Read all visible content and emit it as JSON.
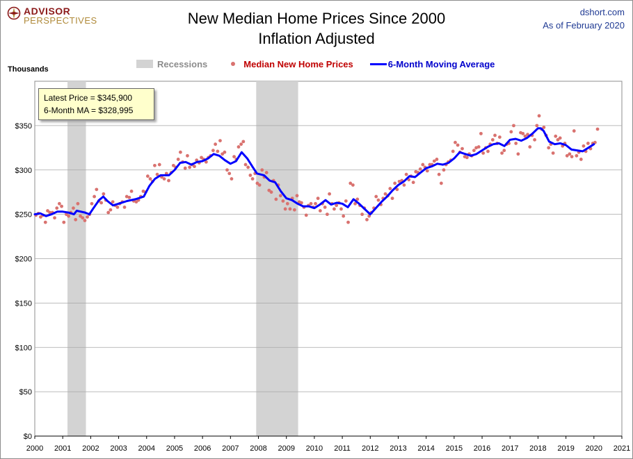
{
  "header": {
    "logo_line1": "ADVISOR",
    "logo_line2": "PERSPECTIVES",
    "title_line1": "New Median Home Prices Since 2000",
    "title_line2": "Inflation Adjusted",
    "source": "dshort.com",
    "date": "As of February 2020"
  },
  "legend": {
    "recessions": "Recessions",
    "median": "Median New Home Prices",
    "ma": "6-Month Moving Average"
  },
  "callout": {
    "latest": "Latest Price = $345,900",
    "ma": "6-Month MA = $328,995"
  },
  "colors": {
    "recession": "#d3d3d3",
    "points": "#d9726f",
    "ma_line": "#0000ff",
    "grid": "#a6a6a6"
  },
  "chart_data": {
    "type": "scatter",
    "title": "New Median Home Prices Since 2000 - Inflation Adjusted",
    "ylabel": "Thousands",
    "xlabel": "",
    "xlim": [
      2000,
      2021
    ],
    "ylim": [
      0,
      400
    ],
    "x_ticks": [
      "2000",
      "2001",
      "2002",
      "2003",
      "2004",
      "2005",
      "2006",
      "2007",
      "2008",
      "2009",
      "2010",
      "2011",
      "2012",
      "2013",
      "2014",
      "2015",
      "2016",
      "2017",
      "2018",
      "2019",
      "2020",
      "2021"
    ],
    "y_ticks": [
      "$0",
      "$50",
      "$100",
      "$150",
      "$200",
      "$250",
      "$300",
      "$350"
    ],
    "recessions": [
      [
        2001.17,
        2001.83
      ],
      [
        2007.92,
        2009.42
      ]
    ],
    "ma_anchors": [
      [
        2000.0,
        250
      ],
      [
        2000.2,
        251
      ],
      [
        2000.4,
        248
      ],
      [
        2000.6,
        250
      ],
      [
        2000.8,
        253
      ],
      [
        2001.0,
        253
      ],
      [
        2001.2,
        252
      ],
      [
        2001.4,
        250
      ],
      [
        2001.5,
        254
      ],
      [
        2001.8,
        252
      ],
      [
        2001.95,
        250
      ],
      [
        2002.1,
        257
      ],
      [
        2002.3,
        266
      ],
      [
        2002.45,
        270
      ],
      [
        2002.6,
        265
      ],
      [
        2002.8,
        260
      ],
      [
        2003.0,
        262
      ],
      [
        2003.3,
        265
      ],
      [
        2003.6,
        267
      ],
      [
        2003.9,
        270
      ],
      [
        2004.1,
        282
      ],
      [
        2004.3,
        290
      ],
      [
        2004.5,
        294
      ],
      [
        2004.8,
        294
      ],
      [
        2005.0,
        300
      ],
      [
        2005.2,
        308
      ],
      [
        2005.4,
        309
      ],
      [
        2005.6,
        306
      ],
      [
        2005.8,
        309
      ],
      [
        2006.0,
        310
      ],
      [
        2006.2,
        313
      ],
      [
        2006.4,
        318
      ],
      [
        2006.6,
        316
      ],
      [
        2006.8,
        311
      ],
      [
        2007.0,
        307
      ],
      [
        2007.2,
        310
      ],
      [
        2007.4,
        320
      ],
      [
        2007.6,
        313
      ],
      [
        2007.8,
        303
      ],
      [
        2007.95,
        296
      ],
      [
        2008.2,
        294
      ],
      [
        2008.4,
        288
      ],
      [
        2008.6,
        286
      ],
      [
        2008.8,
        276
      ],
      [
        2009.0,
        268
      ],
      [
        2009.2,
        266
      ],
      [
        2009.4,
        262
      ],
      [
        2009.6,
        259
      ],
      [
        2009.8,
        259
      ],
      [
        2010.0,
        257
      ],
      [
        2010.2,
        261
      ],
      [
        2010.4,
        266
      ],
      [
        2010.6,
        261
      ],
      [
        2010.8,
        263
      ],
      [
        2011.0,
        262
      ],
      [
        2011.2,
        258
      ],
      [
        2011.4,
        267
      ],
      [
        2011.6,
        262
      ],
      [
        2011.8,
        256
      ],
      [
        2012.0,
        250
      ],
      [
        2012.2,
        257
      ],
      [
        2012.4,
        264
      ],
      [
        2012.6,
        270
      ],
      [
        2012.8,
        277
      ],
      [
        2013.0,
        283
      ],
      [
        2013.2,
        287
      ],
      [
        2013.4,
        293
      ],
      [
        2013.6,
        292
      ],
      [
        2013.8,
        297
      ],
      [
        2014.0,
        302
      ],
      [
        2014.2,
        304
      ],
      [
        2014.4,
        307
      ],
      [
        2014.6,
        306
      ],
      [
        2014.8,
        308
      ],
      [
        2015.0,
        313
      ],
      [
        2015.2,
        320
      ],
      [
        2015.4,
        318
      ],
      [
        2015.6,
        316
      ],
      [
        2015.8,
        318
      ],
      [
        2016.0,
        322
      ],
      [
        2016.2,
        326
      ],
      [
        2016.4,
        329
      ],
      [
        2016.6,
        330
      ],
      [
        2016.8,
        327
      ],
      [
        2017.0,
        334
      ],
      [
        2017.2,
        335
      ],
      [
        2017.4,
        333
      ],
      [
        2017.6,
        336
      ],
      [
        2017.8,
        341
      ],
      [
        2018.0,
        347
      ],
      [
        2018.1,
        347
      ],
      [
        2018.2,
        344
      ],
      [
        2018.4,
        332
      ],
      [
        2018.6,
        329
      ],
      [
        2018.8,
        330
      ],
      [
        2019.0,
        328
      ],
      [
        2019.2,
        323
      ],
      [
        2019.4,
        322
      ],
      [
        2019.6,
        321
      ],
      [
        2019.8,
        325
      ],
      [
        2020.0,
        329
      ]
    ],
    "points": [
      [
        2000.04,
        249
      ],
      [
        2000.13,
        251
      ],
      [
        2000.21,
        247
      ],
      [
        2000.29,
        249
      ],
      [
        2000.38,
        241
      ],
      [
        2000.46,
        254
      ],
      [
        2000.54,
        252
      ],
      [
        2000.63,
        252
      ],
      [
        2000.71,
        246
      ],
      [
        2000.79,
        257
      ],
      [
        2000.88,
        262
      ],
      [
        2000.96,
        259
      ],
      [
        2001.04,
        241
      ],
      [
        2001.13,
        250
      ],
      [
        2001.21,
        248
      ],
      [
        2001.29,
        252
      ],
      [
        2001.38,
        257
      ],
      [
        2001.46,
        244
      ],
      [
        2001.54,
        262
      ],
      [
        2001.63,
        248
      ],
      [
        2001.71,
        246
      ],
      [
        2001.79,
        243
      ],
      [
        2001.88,
        247
      ],
      [
        2001.96,
        250
      ],
      [
        2002.04,
        262
      ],
      [
        2002.13,
        270
      ],
      [
        2002.21,
        278
      ],
      [
        2002.29,
        265
      ],
      [
        2002.38,
        263
      ],
      [
        2002.46,
        273
      ],
      [
        2002.54,
        266
      ],
      [
        2002.63,
        252
      ],
      [
        2002.71,
        255
      ],
      [
        2002.79,
        264
      ],
      [
        2002.88,
        260
      ],
      [
        2002.96,
        258
      ],
      [
        2003.04,
        262
      ],
      [
        2003.13,
        264
      ],
      [
        2003.21,
        258
      ],
      [
        2003.29,
        270
      ],
      [
        2003.38,
        269
      ],
      [
        2003.46,
        276
      ],
      [
        2003.54,
        265
      ],
      [
        2003.63,
        264
      ],
      [
        2003.71,
        266
      ],
      [
        2003.79,
        270
      ],
      [
        2003.88,
        276
      ],
      [
        2003.96,
        275
      ],
      [
        2004.04,
        293
      ],
      [
        2004.13,
        290
      ],
      [
        2004.21,
        287
      ],
      [
        2004.29,
        305
      ],
      [
        2004.38,
        295
      ],
      [
        2004.46,
        306
      ],
      [
        2004.54,
        292
      ],
      [
        2004.63,
        290
      ],
      [
        2004.71,
        296
      ],
      [
        2004.79,
        288
      ],
      [
        2004.88,
        297
      ],
      [
        2004.96,
        305
      ],
      [
        2005.04,
        303
      ],
      [
        2005.13,
        312
      ],
      [
        2005.21,
        320
      ],
      [
        2005.29,
        309
      ],
      [
        2005.38,
        302
      ],
      [
        2005.46,
        316
      ],
      [
        2005.54,
        303
      ],
      [
        2005.63,
        306
      ],
      [
        2005.71,
        304
      ],
      [
        2005.79,
        311
      ],
      [
        2005.88,
        308
      ],
      [
        2005.96,
        314
      ],
      [
        2006.04,
        312
      ],
      [
        2006.13,
        309
      ],
      [
        2006.21,
        314
      ],
      [
        2006.29,
        316
      ],
      [
        2006.38,
        322
      ],
      [
        2006.46,
        329
      ],
      [
        2006.54,
        321
      ],
      [
        2006.63,
        333
      ],
      [
        2006.71,
        318
      ],
      [
        2006.79,
        320
      ],
      [
        2006.88,
        300
      ],
      [
        2006.96,
        296
      ],
      [
        2007.04,
        290
      ],
      [
        2007.13,
        315
      ],
      [
        2007.21,
        312
      ],
      [
        2007.29,
        326
      ],
      [
        2007.38,
        329
      ],
      [
        2007.46,
        332
      ],
      [
        2007.54,
        306
      ],
      [
        2007.63,
        303
      ],
      [
        2007.71,
        294
      ],
      [
        2007.79,
        290
      ],
      [
        2007.88,
        296
      ],
      [
        2007.96,
        285
      ],
      [
        2008.04,
        283
      ],
      [
        2008.13,
        300
      ],
      [
        2008.21,
        292
      ],
      [
        2008.29,
        297
      ],
      [
        2008.38,
        277
      ],
      [
        2008.46,
        275
      ],
      [
        2008.54,
        288
      ],
      [
        2008.63,
        267
      ],
      [
        2008.71,
        283
      ],
      [
        2008.79,
        271
      ],
      [
        2008.88,
        265
      ],
      [
        2008.96,
        256
      ],
      [
        2009.04,
        262
      ],
      [
        2009.13,
        256
      ],
      [
        2009.21,
        268
      ],
      [
        2009.29,
        255
      ],
      [
        2009.38,
        271
      ],
      [
        2009.46,
        264
      ],
      [
        2009.54,
        263
      ],
      [
        2009.63,
        258
      ],
      [
        2009.71,
        249
      ],
      [
        2009.79,
        260
      ],
      [
        2009.88,
        262
      ],
      [
        2009.96,
        258
      ],
      [
        2010.04,
        262
      ],
      [
        2010.13,
        268
      ],
      [
        2010.21,
        254
      ],
      [
        2010.29,
        262
      ],
      [
        2010.38,
        258
      ],
      [
        2010.46,
        250
      ],
      [
        2010.54,
        273
      ],
      [
        2010.63,
        262
      ],
      [
        2010.71,
        256
      ],
      [
        2010.79,
        260
      ],
      [
        2010.88,
        263
      ],
      [
        2010.96,
        256
      ],
      [
        2011.04,
        248
      ],
      [
        2011.13,
        265
      ],
      [
        2011.21,
        241
      ],
      [
        2011.29,
        285
      ],
      [
        2011.38,
        283
      ],
      [
        2011.46,
        262
      ],
      [
        2011.54,
        267
      ],
      [
        2011.63,
        260
      ],
      [
        2011.71,
        250
      ],
      [
        2011.79,
        257
      ],
      [
        2011.88,
        244
      ],
      [
        2011.96,
        248
      ],
      [
        2012.04,
        252
      ],
      [
        2012.13,
        257
      ],
      [
        2012.21,
        270
      ],
      [
        2012.29,
        266
      ],
      [
        2012.38,
        261
      ],
      [
        2012.46,
        268
      ],
      [
        2012.54,
        273
      ],
      [
        2012.63,
        271
      ],
      [
        2012.71,
        279
      ],
      [
        2012.79,
        268
      ],
      [
        2012.88,
        285
      ],
      [
        2012.96,
        278
      ],
      [
        2013.04,
        287
      ],
      [
        2013.13,
        288
      ],
      [
        2013.21,
        283
      ],
      [
        2013.29,
        295
      ],
      [
        2013.38,
        289
      ],
      [
        2013.46,
        293
      ],
      [
        2013.54,
        286
      ],
      [
        2013.63,
        298
      ],
      [
        2013.71,
        297
      ],
      [
        2013.79,
        301
      ],
      [
        2013.88,
        306
      ],
      [
        2013.96,
        303
      ],
      [
        2014.04,
        299
      ],
      [
        2014.13,
        306
      ],
      [
        2014.21,
        306
      ],
      [
        2014.29,
        310
      ],
      [
        2014.38,
        312
      ],
      [
        2014.46,
        295
      ],
      [
        2014.54,
        285
      ],
      [
        2014.63,
        300
      ],
      [
        2014.71,
        306
      ],
      [
        2014.79,
        309
      ],
      [
        2014.88,
        311
      ],
      [
        2014.96,
        321
      ],
      [
        2015.04,
        331
      ],
      [
        2015.13,
        328
      ],
      [
        2015.21,
        320
      ],
      [
        2015.29,
        324
      ],
      [
        2015.38,
        315
      ],
      [
        2015.46,
        314
      ],
      [
        2015.54,
        318
      ],
      [
        2015.63,
        316
      ],
      [
        2015.71,
        322
      ],
      [
        2015.79,
        325
      ],
      [
        2015.88,
        326
      ],
      [
        2015.96,
        341
      ],
      [
        2016.04,
        319
      ],
      [
        2016.13,
        325
      ],
      [
        2016.21,
        321
      ],
      [
        2016.29,
        329
      ],
      [
        2016.38,
        334
      ],
      [
        2016.46,
        339
      ],
      [
        2016.54,
        330
      ],
      [
        2016.63,
        337
      ],
      [
        2016.71,
        319
      ],
      [
        2016.79,
        322
      ],
      [
        2016.88,
        329
      ],
      [
        2016.96,
        330
      ],
      [
        2017.04,
        343
      ],
      [
        2017.13,
        350
      ],
      [
        2017.21,
        330
      ],
      [
        2017.29,
        318
      ],
      [
        2017.38,
        342
      ],
      [
        2017.46,
        341
      ],
      [
        2017.54,
        338
      ],
      [
        2017.63,
        340
      ],
      [
        2017.71,
        326
      ],
      [
        2017.79,
        339
      ],
      [
        2017.88,
        334
      ],
      [
        2017.96,
        350
      ],
      [
        2018.04,
        361
      ],
      [
        2018.13,
        346
      ],
      [
        2018.21,
        348
      ],
      [
        2018.29,
        339
      ],
      [
        2018.38,
        325
      ],
      [
        2018.46,
        329
      ],
      [
        2018.54,
        319
      ],
      [
        2018.63,
        338
      ],
      [
        2018.71,
        334
      ],
      [
        2018.79,
        336
      ],
      [
        2018.88,
        327
      ],
      [
        2018.96,
        330
      ],
      [
        2019.04,
        316
      ],
      [
        2019.13,
        318
      ],
      [
        2019.21,
        315
      ],
      [
        2019.29,
        344
      ],
      [
        2019.38,
        316
      ],
      [
        2019.46,
        320
      ],
      [
        2019.54,
        312
      ],
      [
        2019.63,
        327
      ],
      [
        2019.71,
        321
      ],
      [
        2019.79,
        330
      ],
      [
        2019.88,
        324
      ],
      [
        2019.96,
        330
      ],
      [
        2020.04,
        331
      ],
      [
        2020.13,
        346
      ]
    ]
  }
}
